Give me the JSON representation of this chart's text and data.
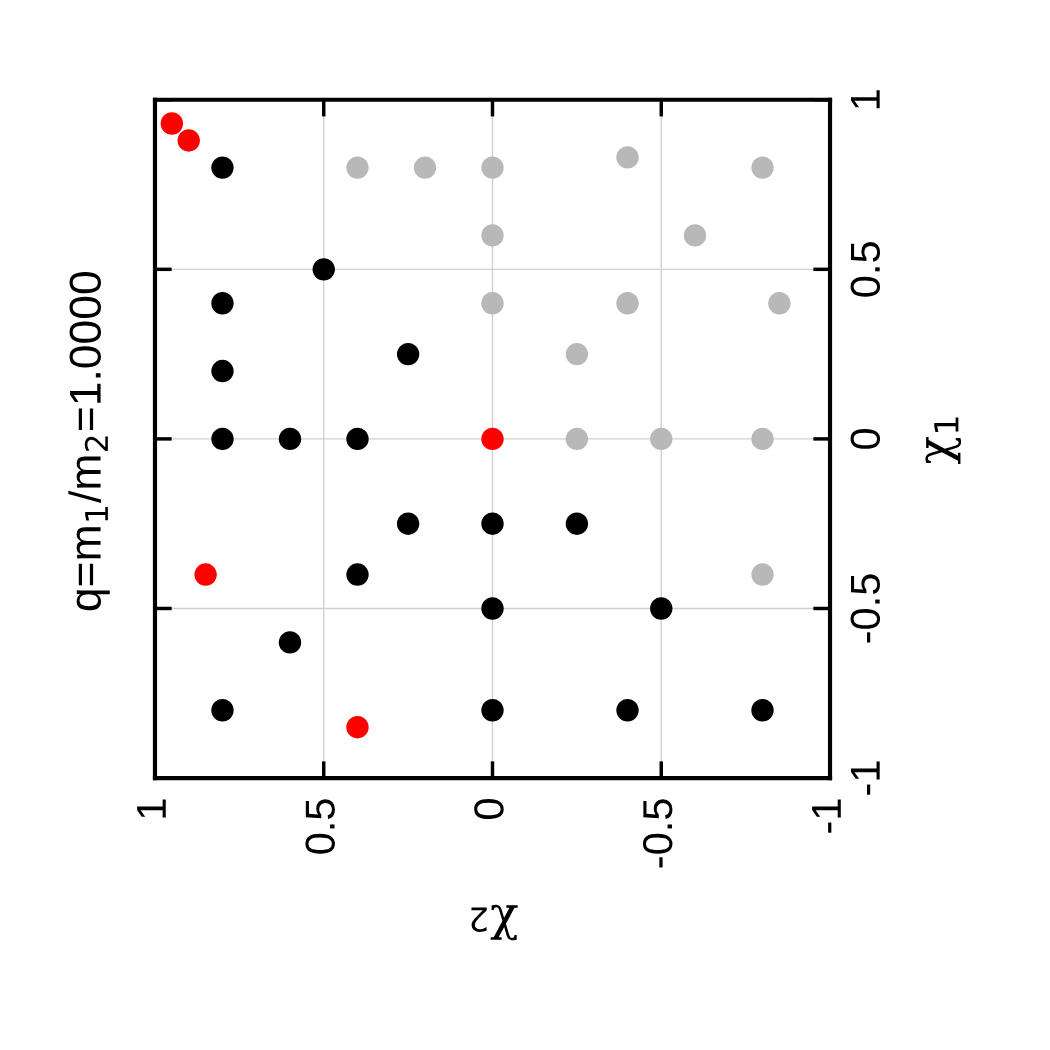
{
  "chart_data": {
    "type": "scatter",
    "title": "q=m$_{1}$/m$_{2}$=1.0000",
    "xlabel": "χ$_{2}$",
    "ylabel": "χ$_{1}$",
    "xlim": [
      1,
      -1
    ],
    "xticks": [
      1,
      0.5,
      0,
      -0.5,
      -1
    ],
    "ylim": [
      -1,
      1
    ],
    "yticks": [
      -1,
      -0.5,
      0,
      0.5,
      1
    ],
    "grid": true,
    "marker": "circle",
    "series": [
      {
        "color": "#000000",
        "x": [
          0.8,
          0.5,
          0.8,
          0.8,
          0.8,
          0.6,
          0.4,
          0.25,
          0.25,
          0,
          -0.25,
          0.4,
          0,
          -0.5,
          0.6,
          0.8,
          0,
          -0.4,
          -0.8
        ],
        "values": [
          0.8,
          0.5,
          0.4,
          0.2,
          0,
          0,
          0,
          0.25,
          -0.25,
          -0.25,
          -0.25,
          -0.4,
          -0.5,
          -0.5,
          -0.6,
          -0.8,
          -0.8,
          -0.8,
          -0.8
        ]
      },
      {
        "color": "#ff0000",
        "x": [
          0.95,
          0.9,
          0,
          0.85,
          0.4
        ],
        "values": [
          0.93,
          0.88,
          0,
          -0.4,
          -0.85
        ]
      },
      {
        "color": "#b8b8b8",
        "x": [
          0.4,
          0.2,
          0,
          -0.4,
          -0.8,
          0,
          -0.6,
          0,
          -0.4,
          -0.85,
          -0.25,
          -0.25,
          -0.5,
          -0.8,
          -0.8
        ],
        "values": [
          0.8,
          0.8,
          0.8,
          0.83,
          0.8,
          0.6,
          0.6,
          0.4,
          0.4,
          0.4,
          0.25,
          0,
          0,
          0,
          -0.4
        ]
      }
    ]
  }
}
